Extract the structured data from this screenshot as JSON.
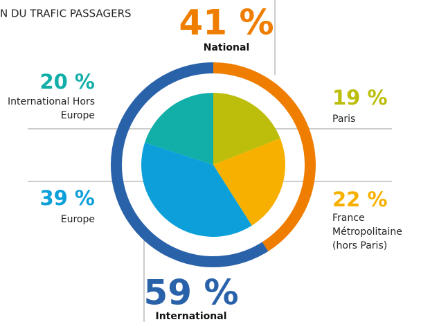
{
  "chart_data": [
    {
      "type": "pie",
      "title": "N DU TRAFIC PASSAGERS",
      "categories": [
        "Paris",
        "France Métropolitaine (hors Paris)",
        "Europe",
        "International Hors Europe"
      ],
      "values": [
        19,
        22,
        39,
        20
      ],
      "value_labels": [
        "19 %",
        "22 %",
        "39 %",
        "20 %"
      ],
      "colors": [
        "#bdbe0b",
        "#f8b000",
        "#0d9fd9",
        "#12afa8"
      ]
    },
    {
      "type": "donut",
      "categories": [
        "National",
        "International"
      ],
      "values": [
        41,
        59
      ],
      "value_labels": [
        "41 %",
        "59 %"
      ],
      "colors": [
        "#ef7d00",
        "#2a62aa"
      ]
    }
  ]
}
